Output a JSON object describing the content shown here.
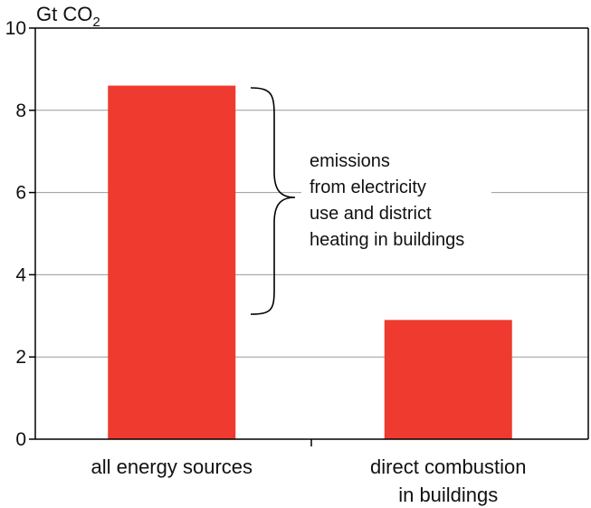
{
  "chart_data": {
    "type": "bar",
    "unit_label": "Gt CO",
    "unit_subscript": "2",
    "categories": [
      [
        "all energy sources"
      ],
      [
        "direct combustion",
        "in buildings"
      ]
    ],
    "values": [
      8.6,
      2.9
    ],
    "ylim": [
      0,
      10
    ],
    "yticks": [
      "0",
      "2",
      "4",
      "6",
      "8",
      "10"
    ],
    "grid": true,
    "bar_color": "#EE3A2F",
    "annotation": {
      "lines": [
        "emissions",
        "from electricity",
        "use and district",
        "heating in buildings"
      ],
      "range": [
        3.0,
        8.6
      ]
    }
  }
}
